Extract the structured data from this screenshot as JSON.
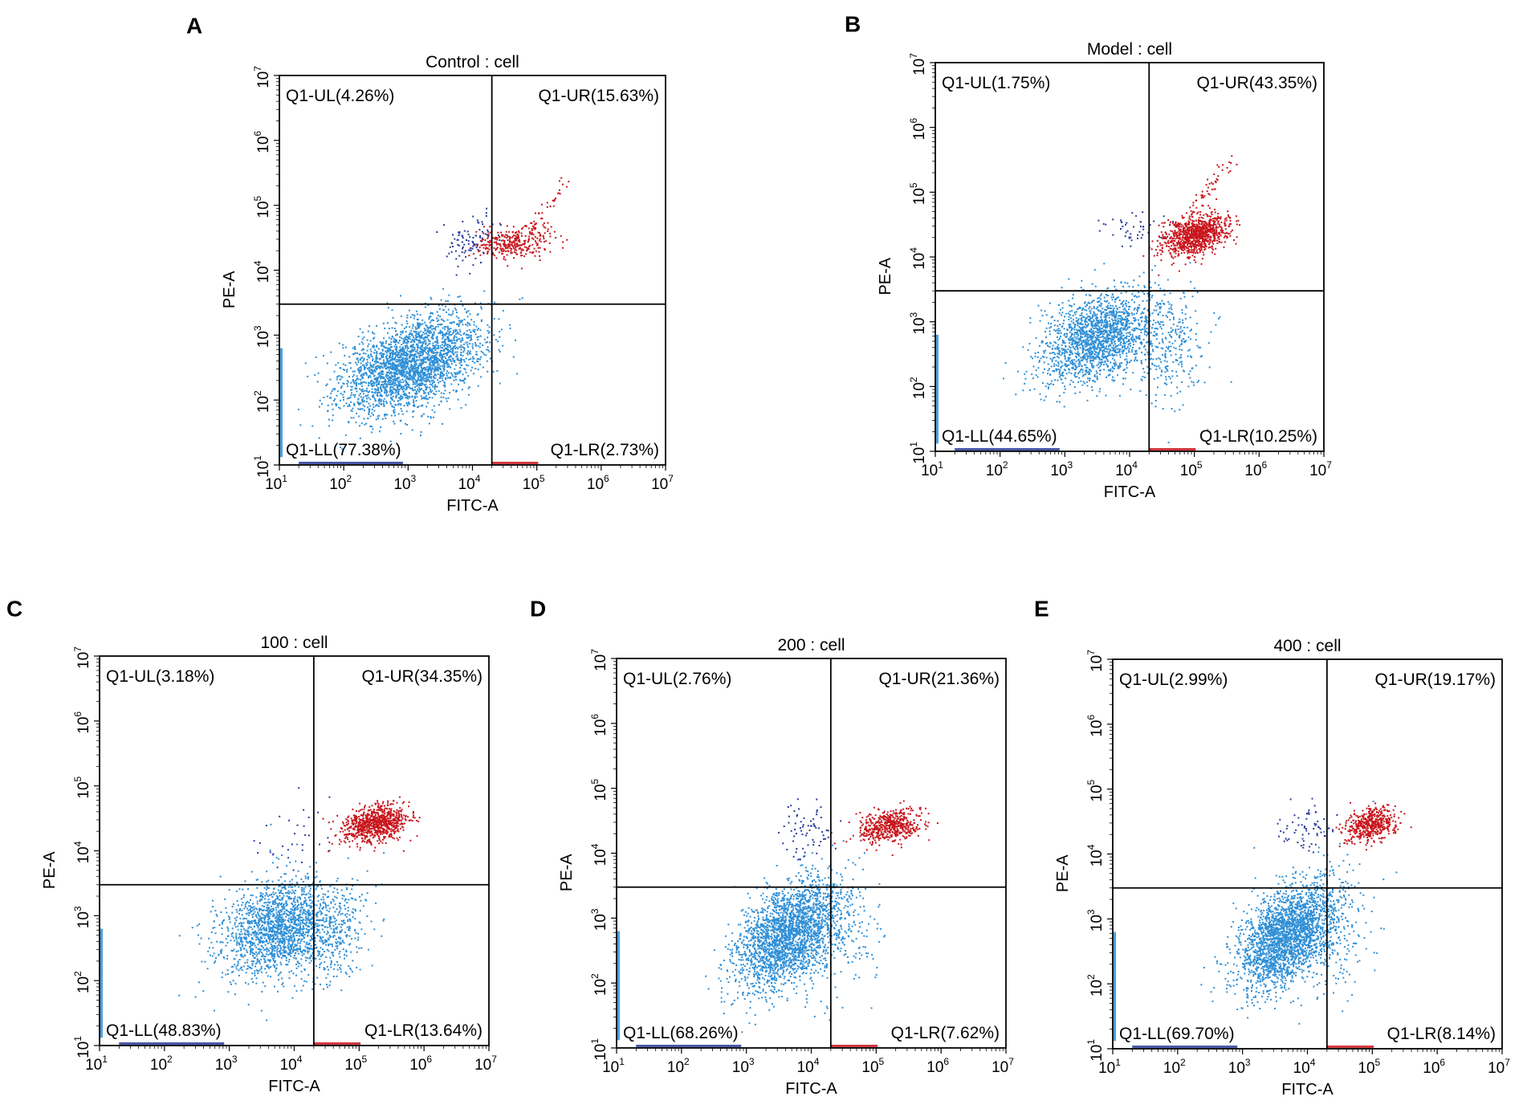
{
  "figure": {
    "panels": [
      {
        "letter": "A",
        "title": "Control : cell",
        "xlabel": "FITC-A",
        "ylabel": "PE-A",
        "xticks": [
          "10",
          "10",
          "10",
          "10",
          "10",
          "10",
          "10"
        ],
        "yticks": [
          "10",
          "10",
          "10",
          "10",
          "10",
          "10",
          "10"
        ]
      },
      {
        "letter": "B",
        "title": "Model : cell",
        "xlabel": "FITC-A",
        "ylabel": "PE-A",
        "xticks": [
          "10",
          "10",
          "10",
          "10",
          "10",
          "10",
          "10"
        ],
        "yticks": [
          "10",
          "10",
          "10",
          "10",
          "10",
          "10",
          "10"
        ]
      },
      {
        "letter": "C",
        "title": "100 : cell",
        "xlabel": "FITC-A",
        "ylabel": "PE-A",
        "xticks": [
          "10",
          "10",
          "10",
          "10",
          "10",
          "10",
          "10"
        ],
        "yticks": [
          "10",
          "10",
          "10",
          "10",
          "10",
          "10",
          "10"
        ]
      },
      {
        "letter": "D",
        "title": "200 : cell",
        "xlabel": "FITC-A",
        "ylabel": "PE-A",
        "xticks": [
          "10",
          "10",
          "10",
          "10",
          "10",
          "10",
          "10"
        ],
        "yticks": [
          "10",
          "10",
          "10",
          "10",
          "10",
          "10",
          "10"
        ]
      },
      {
        "letter": "E",
        "title": "400 : cell",
        "xlabel": "FITC-A",
        "ylabel": "PE-A",
        "xticks": [
          "10",
          "10",
          "10",
          "10",
          "10",
          "10",
          "10"
        ],
        "yticks": [
          "10",
          "10",
          "10",
          "10",
          "10",
          "10",
          "10"
        ]
      }
    ],
    "tick_exponents": [
      "1",
      "2",
      "3",
      "4",
      "5",
      "6",
      "7"
    ]
  },
  "colors": {
    "live": "#2f8fd6",
    "apoptotic": "#c8161d",
    "ul_events": "#2a3b9a",
    "axis": "#000000"
  },
  "chart_data": [
    {
      "type": "scatter",
      "title": "Control : cell",
      "xlabel": "FITC-A",
      "ylabel": "PE-A",
      "xscale": "log10",
      "yscale": "log10",
      "xlim": [
        10,
        10000000
      ],
      "ylim": [
        10,
        10000000
      ],
      "gate": {
        "x": 20000,
        "y": 3000
      },
      "quadrants": {
        "UL": "Q1-UL(4.26%)",
        "UR": "Q1-UR(15.63%)",
        "LL": "Q1-LL(77.38%)",
        "LR": "Q1-LR(2.73%)"
      },
      "populations": [
        {
          "name": "LL",
          "color": "#2f8fd6",
          "count": 2600,
          "cx": 3.05,
          "cy": 2.55,
          "sx": 0.55,
          "sy": 0.38,
          "rho": 0.45
        },
        {
          "name": "UR",
          "color": "#c8161d",
          "count": 320,
          "cx": 4.65,
          "cy": 4.42,
          "sx": 0.28,
          "sy": 0.12,
          "rho": 0.2
        },
        {
          "name": "UL",
          "color": "#2a3b9a",
          "count": 90,
          "cx": 3.95,
          "cy": 4.45,
          "sx": 0.25,
          "sy": 0.18,
          "rho": 0.1
        },
        {
          "name": "tail",
          "color": "#c8161d",
          "count": 40,
          "line": [
            [
              4.9,
              4.6
            ],
            [
              5.45,
              5.4
            ]
          ]
        }
      ]
    },
    {
      "type": "scatter",
      "title": "Model : cell",
      "xlabel": "FITC-A",
      "ylabel": "PE-A",
      "xscale": "log10",
      "yscale": "log10",
      "xlim": [
        10,
        10000000
      ],
      "ylim": [
        10,
        10000000
      ],
      "gate": {
        "x": 20000,
        "y": 3000
      },
      "quadrants": {
        "UL": "Q1-UL(1.75%)",
        "UR": "Q1-UR(43.35%)",
        "LL": "Q1-LL(44.65%)",
        "LR": "Q1-LR(10.25%)"
      },
      "populations": [
        {
          "name": "LL",
          "color": "#2f8fd6",
          "count": 1700,
          "cx": 3.5,
          "cy": 2.75,
          "sx": 0.42,
          "sy": 0.35,
          "rho": 0.35
        },
        {
          "name": "UR",
          "color": "#c8161d",
          "count": 950,
          "cx": 5.0,
          "cy": 4.35,
          "sx": 0.25,
          "sy": 0.16,
          "rho": 0.35
        },
        {
          "name": "UL",
          "color": "#2a3b9a",
          "count": 45,
          "cx": 4.0,
          "cy": 4.4,
          "sx": 0.2,
          "sy": 0.15,
          "rho": 0.1
        },
        {
          "name": "LR",
          "color": "#2f8fd6",
          "count": 300,
          "cx": 4.6,
          "cy": 2.6,
          "sx": 0.3,
          "sy": 0.45,
          "rho": 0.1
        },
        {
          "name": "tail",
          "color": "#c8161d",
          "count": 45,
          "line": [
            [
              4.9,
              4.7
            ],
            [
              5.6,
              5.5
            ]
          ]
        }
      ]
    },
    {
      "type": "scatter",
      "title": "100 : cell",
      "xlabel": "FITC-A",
      "ylabel": "PE-A",
      "xscale": "log10",
      "yscale": "log10",
      "xlim": [
        10,
        10000000
      ],
      "ylim": [
        10,
        10000000
      ],
      "gate": {
        "x": 20000,
        "y": 3000
      },
      "quadrants": {
        "UL": "Q1-UL(3.18%)",
        "UR": "Q1-UR(34.35%)",
        "LL": "Q1-LL(48.83%)",
        "LR": "Q1-LR(13.64%)"
      },
      "populations": [
        {
          "name": "LL",
          "color": "#2f8fd6",
          "count": 1700,
          "cx": 3.75,
          "cy": 2.8,
          "sx": 0.45,
          "sy": 0.38,
          "rho": 0.25
        },
        {
          "name": "UR",
          "color": "#c8161d",
          "count": 800,
          "cx": 5.25,
          "cy": 4.42,
          "sx": 0.25,
          "sy": 0.14,
          "rho": 0.3
        },
        {
          "name": "UL",
          "color": "#2a3b9a",
          "count": 30,
          "cx": 4.0,
          "cy": 4.3,
          "sx": 0.25,
          "sy": 0.3,
          "rho": 0.0
        },
        {
          "name": "LR",
          "color": "#2f8fd6",
          "count": 300,
          "cx": 4.6,
          "cy": 2.7,
          "sx": 0.3,
          "sy": 0.45,
          "rho": 0.1
        }
      ]
    },
    {
      "type": "scatter",
      "title": "200 : cell",
      "xlabel": "FITC-A",
      "ylabel": "PE-A",
      "xscale": "log10",
      "yscale": "log10",
      "xlim": [
        10,
        10000000
      ],
      "ylim": [
        10,
        10000000
      ],
      "gate": {
        "x": 20000,
        "y": 3000
      },
      "quadrants": {
        "UL": "Q1-UL(2.76%)",
        "UR": "Q1-UR(21.36%)",
        "LL": "Q1-LL(68.26%)",
        "LR": "Q1-LR(7.62%)"
      },
      "populations": [
        {
          "name": "LL",
          "color": "#2f8fd6",
          "count": 2400,
          "cx": 3.65,
          "cy": 2.75,
          "sx": 0.4,
          "sy": 0.42,
          "rho": 0.45
        },
        {
          "name": "UR",
          "color": "#c8161d",
          "count": 520,
          "cx": 5.2,
          "cy": 4.42,
          "sx": 0.25,
          "sy": 0.13,
          "rho": 0.25
        },
        {
          "name": "UL",
          "color": "#2a3b9a",
          "count": 70,
          "cx": 3.95,
          "cy": 4.35,
          "sx": 0.22,
          "sy": 0.22,
          "rho": 0.1
        },
        {
          "name": "LR",
          "color": "#2f8fd6",
          "count": 150,
          "cx": 4.5,
          "cy": 2.7,
          "sx": 0.3,
          "sy": 0.5,
          "rho": 0.1
        }
      ]
    },
    {
      "type": "scatter",
      "title": "400 : cell",
      "xlabel": "FITC-A",
      "ylabel": "PE-A",
      "xscale": "log10",
      "yscale": "log10",
      "xlim": [
        10,
        10000000
      ],
      "ylim": [
        10,
        10000000
      ],
      "gate": {
        "x": 20000,
        "y": 3000
      },
      "quadrants": {
        "UL": "Q1-UL(2.99%)",
        "UR": "Q1-UR(19.17%)",
        "LL": "Q1-LL(69.70%)",
        "LR": "Q1-LR(8.14%)"
      },
      "populations": [
        {
          "name": "LL",
          "color": "#2f8fd6",
          "count": 2400,
          "cx": 3.7,
          "cy": 2.75,
          "sx": 0.38,
          "sy": 0.4,
          "rho": 0.45
        },
        {
          "name": "UR",
          "color": "#c8161d",
          "count": 480,
          "cx": 5.0,
          "cy": 4.45,
          "sx": 0.2,
          "sy": 0.13,
          "rho": 0.25
        },
        {
          "name": "UL",
          "color": "#2a3b9a",
          "count": 65,
          "cx": 3.95,
          "cy": 4.35,
          "sx": 0.22,
          "sy": 0.2,
          "rho": 0.1
        },
        {
          "name": "LR",
          "color": "#2f8fd6",
          "count": 150,
          "cx": 4.5,
          "cy": 2.7,
          "sx": 0.3,
          "sy": 0.5,
          "rho": 0.1
        }
      ]
    }
  ]
}
